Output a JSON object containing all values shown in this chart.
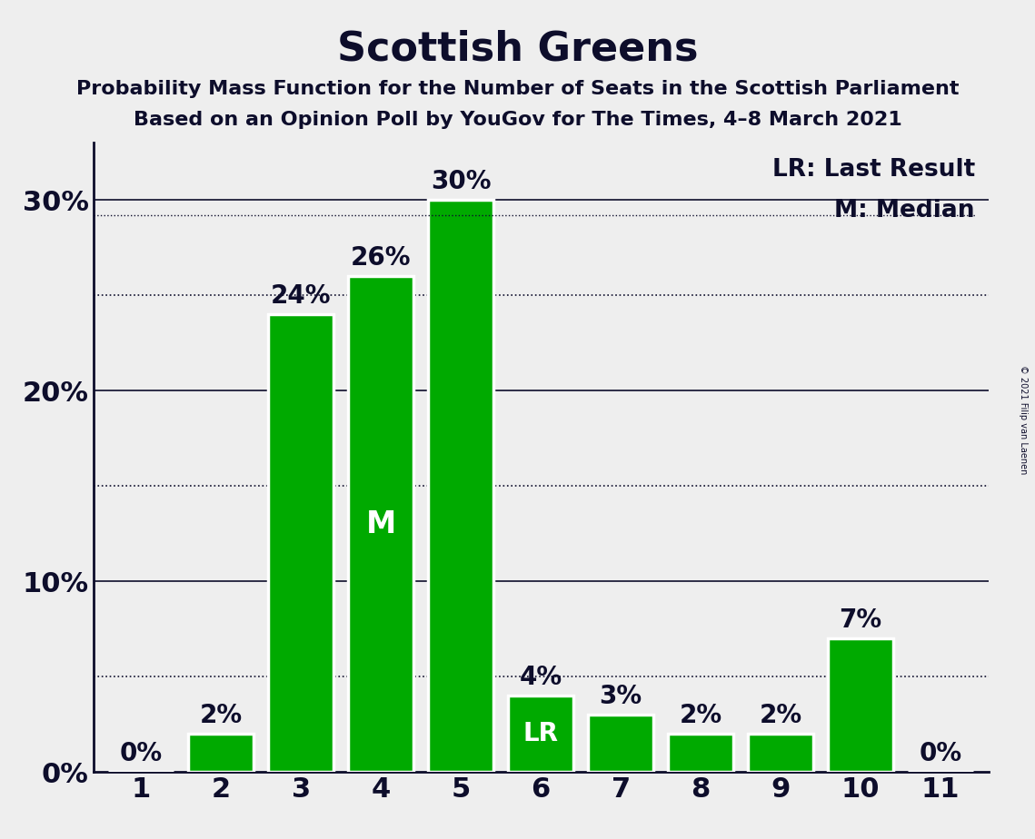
{
  "title": "Scottish Greens",
  "subtitle1": "Probability Mass Function for the Number of Seats in the Scottish Parliament",
  "subtitle2": "Based on an Opinion Poll by YouGov for The Times, 4–8 March 2021",
  "copyright": "© 2021 Filip van Laenen",
  "categories": [
    1,
    2,
    3,
    4,
    5,
    6,
    7,
    8,
    9,
    10,
    11
  ],
  "values": [
    0,
    2,
    24,
    26,
    30,
    4,
    3,
    2,
    2,
    7,
    0
  ],
  "bar_color": "#00aa00",
  "bar_edge_color": "#ffffff",
  "median_seat": 4,
  "last_result_seat": 6,
  "legend_lr": "LR: Last Result",
  "legend_m": "M: Median",
  "background_color": "#eeeeee",
  "ylim": [
    0,
    33
  ],
  "major_yticks": [
    0,
    10,
    20,
    30
  ],
  "major_ytick_labels": [
    "0%",
    "10%",
    "20%",
    "30%"
  ],
  "minor_yticks": [
    5,
    15,
    25
  ],
  "grid_major_color": "#0d0d2b",
  "grid_minor_color": "#0d0d2b",
  "title_fontsize": 32,
  "subtitle_fontsize": 16,
  "bar_label_fontsize": 20,
  "tick_fontsize": 22,
  "legend_fontsize": 19,
  "text_color": "#0d0d2b",
  "bar_label_color_dark": "#0d0d2b",
  "bar_label_color_white": "#ffffff"
}
